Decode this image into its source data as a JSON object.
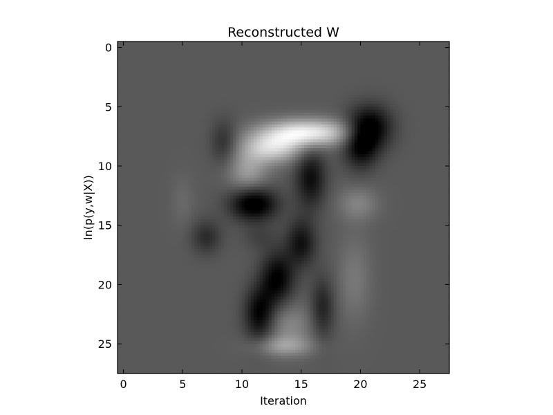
{
  "chart_data": {
    "type": "heatmap",
    "title": "Reconstructed W",
    "xlabel": "Iteration",
    "ylabel": "ln(p(y,w|X))",
    "xlim": [
      -0.5,
      27.5
    ],
    "ylim": [
      27.5,
      -0.5
    ],
    "xticks": [
      0,
      5,
      10,
      15,
      20,
      25
    ],
    "yticks": [
      0,
      5,
      10,
      15,
      20,
      25
    ],
    "grid": false,
    "colormap": "gray",
    "background_value": 0.35,
    "blobs": [
      {
        "x": 15.5,
        "y": 7.2,
        "sx": 2.6,
        "sy": 0.8,
        "v": 0.6
      },
      {
        "x": 12.5,
        "y": 8.5,
        "sx": 1.8,
        "sy": 0.9,
        "v": 0.45
      },
      {
        "x": 10.5,
        "y": 10.5,
        "sx": 1.2,
        "sy": 1.2,
        "v": 0.25
      },
      {
        "x": 20.8,
        "y": 6.8,
        "sx": 1.3,
        "sy": 1.3,
        "v": -0.4
      },
      {
        "x": 20.0,
        "y": 8.5,
        "sx": 1.0,
        "sy": 1.3,
        "v": -0.28
      },
      {
        "x": 11.0,
        "y": 13.2,
        "sx": 1.4,
        "sy": 1.0,
        "v": -0.42
      },
      {
        "x": 15.8,
        "y": 11.0,
        "sx": 0.9,
        "sy": 1.8,
        "v": -0.3
      },
      {
        "x": 8.5,
        "y": 8.0,
        "sx": 0.8,
        "sy": 1.3,
        "v": -0.18
      },
      {
        "x": 7.0,
        "y": 16.0,
        "sx": 0.9,
        "sy": 1.0,
        "v": -0.18
      },
      {
        "x": 15.0,
        "y": 16.5,
        "sx": 0.9,
        "sy": 1.4,
        "v": -0.28
      },
      {
        "x": 13.0,
        "y": 19.5,
        "sx": 1.0,
        "sy": 1.6,
        "v": -0.35
      },
      {
        "x": 11.5,
        "y": 22.5,
        "sx": 0.9,
        "sy": 1.6,
        "v": -0.35
      },
      {
        "x": 16.8,
        "y": 22.0,
        "sx": 0.7,
        "sy": 1.8,
        "v": -0.22
      },
      {
        "x": 14.0,
        "y": 23.5,
        "sx": 1.4,
        "sy": 1.4,
        "v": 0.18
      },
      {
        "x": 13.5,
        "y": 25.2,
        "sx": 1.8,
        "sy": 0.6,
        "v": 0.22
      },
      {
        "x": 19.5,
        "y": 19.5,
        "sx": 1.0,
        "sy": 2.6,
        "v": 0.12
      },
      {
        "x": 19.8,
        "y": 13.2,
        "sx": 1.2,
        "sy": 1.0,
        "v": 0.16
      },
      {
        "x": 5.0,
        "y": 13.0,
        "sx": 0.7,
        "sy": 1.6,
        "v": 0.06
      },
      {
        "x": 11.5,
        "y": 16.0,
        "sx": 1.0,
        "sy": 0.8,
        "v": -0.08
      }
    ]
  }
}
